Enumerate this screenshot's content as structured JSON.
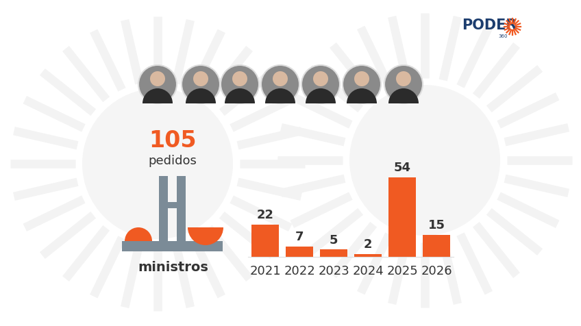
{
  "chart_data": {
    "type": "bar",
    "categories": [
      "2021",
      "2022",
      "2023",
      "2024",
      "2025",
      "2026"
    ],
    "values": [
      22,
      7,
      5,
      2,
      54,
      15
    ],
    "color": "#f05a22",
    "ylim": [
      0,
      54
    ],
    "data_labels": true,
    "tick_labels": "x",
    "grid": false
  },
  "total": {
    "value": 105,
    "label": "pedidos"
  },
  "subject": "ministros",
  "brand": {
    "name": "PODER",
    "suffix": "360"
  }
}
